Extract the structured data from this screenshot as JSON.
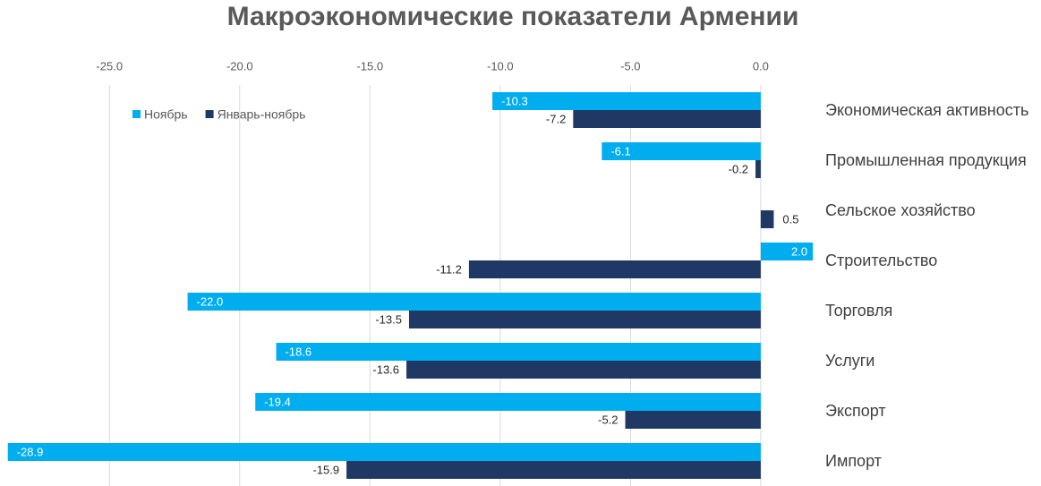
{
  "chart_data": {
    "type": "hbar",
    "title": "Макроэкономические показатели Армении",
    "categories": [
      "Экономическая активность",
      "Промышленная продукция",
      "Сельское хозяйство",
      "Строительство",
      "Торговля",
      "Услуги",
      "Экспорт",
      "Импорт"
    ],
    "series": [
      {
        "name": "Ноябрь",
        "color": "#00aeef",
        "values": [
          -10.3,
          -6.1,
          null,
          2.0,
          -22.0,
          -18.6,
          -19.4,
          -28.9
        ],
        "value_labels": [
          "-10.3",
          "-6.1",
          null,
          "2.0",
          "-22.0",
          "-18.6",
          "-19.4",
          "-28.9"
        ]
      },
      {
        "name": "Январь-ноябрь",
        "color": "#203864",
        "values": [
          -7.2,
          -0.2,
          0.5,
          -11.2,
          -13.5,
          -13.6,
          -5.2,
          -15.9
        ],
        "value_labels": [
          "-7.2",
          "-0.2",
          "0.5",
          "-11.2",
          "-13.5",
          "-13.6",
          "-5.2",
          "-15.9"
        ]
      }
    ],
    "xlim": [
      -29.2,
      2.1
    ],
    "xticks": [
      {
        "value": -25,
        "label": "-25.0"
      },
      {
        "value": -20,
        "label": "-20.0"
      },
      {
        "value": -15,
        "label": "-15.0"
      },
      {
        "value": -10,
        "label": "-10.0"
      },
      {
        "value": -5,
        "label": "-5.0"
      },
      {
        "value": 0,
        "label": "0.0"
      }
    ],
    "grid": true,
    "legend": "top-left"
  }
}
